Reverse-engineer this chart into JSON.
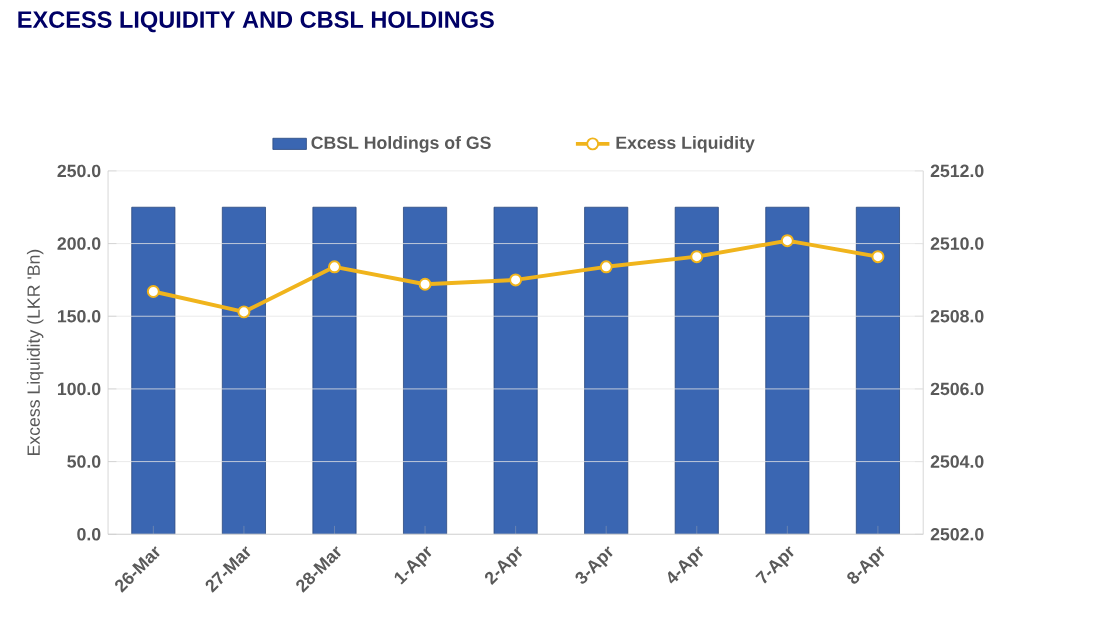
{
  "chart_data": {
    "type": "bar",
    "title": "EXCESS LIQUIDITY AND CBSL HOLDINGS",
    "ylabel": "Excess Liquidity (LKR 'Bn)",
    "categories": [
      "26-Mar",
      "27-Mar",
      "28-Mar",
      "1-Apr",
      "2-Apr",
      "3-Apr",
      "4-Apr",
      "7-Apr",
      "8-Apr"
    ],
    "series": [
      {
        "name": "CBSL Holdings of GS",
        "axis": "y2",
        "color": "#3a66b2",
        "values": [
          2511.0,
          2511.0,
          2511.0,
          2511.0,
          2511.0,
          2511.0,
          2511.0,
          2511.0,
          2511.0
        ]
      },
      {
        "name": "Excess Liquidity",
        "type": "line",
        "color": "#f0b41c",
        "marker": "circle",
        "values": [
          167,
          153,
          184,
          172,
          175,
          184,
          191,
          202,
          191
        ]
      }
    ],
    "ylim": [
      0,
      250
    ],
    "yticks": [
      {
        "value": 0,
        "label": "0.0"
      },
      {
        "value": 50,
        "label": "50.0"
      },
      {
        "value": 100,
        "label": "100.0"
      },
      {
        "value": 150,
        "label": "150.0"
      },
      {
        "value": 200,
        "label": "200.0"
      },
      {
        "value": 250,
        "label": "250.0"
      }
    ],
    "y2lim": [
      2502,
      2512
    ],
    "y2ticks": [
      {
        "value": 2502,
        "label": "2502.0"
      },
      {
        "value": 2504,
        "label": "2504.0"
      },
      {
        "value": 2506,
        "label": "2506.0"
      },
      {
        "value": 2508,
        "label": "2508.0"
      },
      {
        "value": 2510,
        "label": "2510.0"
      },
      {
        "value": 2512,
        "label": "2512.0"
      }
    ],
    "grid": "y",
    "legend": "top"
  }
}
